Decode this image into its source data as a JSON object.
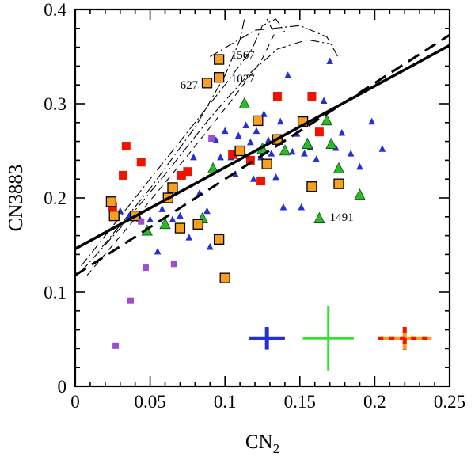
{
  "figure": {
    "xlabel": {
      "text": "CN",
      "sub": "2"
    },
    "ylabel": "CN3883"
  },
  "chart_data": {
    "type": "scatter",
    "title": "",
    "xlabel": "CN2",
    "ylabel": "CN3883",
    "xlim": [
      0,
      0.25
    ],
    "ylim": [
      0,
      0.4
    ],
    "xticks": [
      0,
      0.05,
      0.1,
      0.15,
      0.2,
      0.25
    ],
    "xtick_labels": [
      "0",
      "0.05",
      "0.1",
      "0.15",
      "0.2",
      "0.25"
    ],
    "xminor_step": 0.01,
    "yticks": [
      0,
      0.1,
      0.2,
      0.3,
      0.4
    ],
    "ytick_labels": [
      "0",
      "0.1",
      "0.2",
      "0.3",
      "0.4"
    ],
    "yminor_step": 0.02,
    "grid": false,
    "series": [
      {
        "name": "blue-triangles",
        "marker": "triangle",
        "color": "#2430cf",
        "edge": "none",
        "size": 4,
        "points": [
          [
            0.03,
            0.186
          ],
          [
            0.036,
            0.181
          ],
          [
            0.043,
            0.178
          ],
          [
            0.05,
            0.177
          ],
          [
            0.055,
            0.143
          ],
          [
            0.058,
            0.188
          ],
          [
            0.065,
            0.177
          ],
          [
            0.07,
            0.181
          ],
          [
            0.076,
            0.158
          ],
          [
            0.079,
            0.243
          ],
          [
            0.083,
            0.205
          ],
          [
            0.088,
            0.186
          ],
          [
            0.09,
            0.148
          ],
          [
            0.094,
            0.261
          ],
          [
            0.097,
            0.243
          ],
          [
            0.1,
            0.271
          ],
          [
            0.104,
            0.243
          ],
          [
            0.107,
            0.225
          ],
          [
            0.109,
            0.266
          ],
          [
            0.112,
            0.249
          ],
          [
            0.114,
            0.277
          ],
          [
            0.117,
            0.259
          ],
          [
            0.119,
            0.22
          ],
          [
            0.121,
            0.271
          ],
          [
            0.124,
            0.243
          ],
          [
            0.126,
            0.289
          ],
          [
            0.129,
            0.261
          ],
          [
            0.131,
            0.247
          ],
          [
            0.134,
            0.222
          ],
          [
            0.137,
            0.281
          ],
          [
            0.139,
            0.19
          ],
          [
            0.142,
            0.33
          ],
          [
            0.145,
            0.249
          ],
          [
            0.148,
            0.268
          ],
          [
            0.151,
            0.19
          ],
          [
            0.153,
            0.247
          ],
          [
            0.157,
            0.254
          ],
          [
            0.161,
            0.241
          ],
          [
            0.166,
            0.303
          ],
          [
            0.17,
            0.345
          ],
          [
            0.174,
            0.253
          ],
          [
            0.178,
            0.269
          ],
          [
            0.184,
            0.247
          ],
          [
            0.19,
            0.233
          ],
          [
            0.198,
            0.281
          ],
          [
            0.205,
            0.252
          ]
        ]
      },
      {
        "name": "green-triangles",
        "marker": "triangle",
        "color": "#2db82d",
        "edge": "#005500",
        "size": 6,
        "points": [
          [
            0.048,
            0.165
          ],
          [
            0.06,
            0.172
          ],
          [
            0.085,
            0.178
          ],
          [
            0.092,
            0.231
          ],
          [
            0.113,
            0.3
          ],
          [
            0.125,
            0.252
          ],
          [
            0.14,
            0.25
          ],
          [
            0.155,
            0.257
          ],
          [
            0.163,
            0.178
          ],
          [
            0.168,
            0.282
          ],
          [
            0.171,
            0.257
          ],
          [
            0.176,
            0.231
          ],
          [
            0.19,
            0.203
          ]
        ]
      },
      {
        "name": "red-squares",
        "marker": "square",
        "color": "#ee1500",
        "edge": "none",
        "size": 5.5,
        "points": [
          [
            0.025,
            0.191
          ],
          [
            0.032,
            0.224
          ],
          [
            0.034,
            0.255
          ],
          [
            0.044,
            0.238
          ],
          [
            0.071,
            0.224
          ],
          [
            0.075,
            0.228
          ],
          [
            0.105,
            0.246
          ],
          [
            0.117,
            0.24
          ],
          [
            0.124,
            0.218
          ],
          [
            0.135,
            0.308
          ],
          [
            0.158,
            0.308
          ],
          [
            0.163,
            0.27
          ]
        ]
      },
      {
        "name": "orange-squares",
        "marker": "square",
        "color": "#f5a020",
        "edge": "#000000",
        "size": 6,
        "points": [
          [
            0.024,
            0.196
          ],
          [
            0.026,
            0.181
          ],
          [
            0.04,
            0.181
          ],
          [
            0.062,
            0.2
          ],
          [
            0.065,
            0.211
          ],
          [
            0.07,
            0.168
          ],
          [
            0.082,
            0.172
          ],
          [
            0.088,
            0.322
          ],
          [
            0.096,
            0.347
          ],
          [
            0.096,
            0.328
          ],
          [
            0.096,
            0.156
          ],
          [
            0.1,
            0.115
          ],
          [
            0.11,
            0.25
          ],
          [
            0.122,
            0.282
          ],
          [
            0.128,
            0.236
          ],
          [
            0.135,
            0.262
          ],
          [
            0.152,
            0.281
          ],
          [
            0.158,
            0.212
          ],
          [
            0.176,
            0.215
          ]
        ]
      },
      {
        "name": "purple-squares",
        "marker": "square",
        "color": "#9b4fd0",
        "edge": "none",
        "size": 4,
        "points": [
          [
            0.027,
            0.043
          ],
          [
            0.037,
            0.091
          ],
          [
            0.047,
            0.126
          ],
          [
            0.066,
            0.13
          ],
          [
            0.044,
            0.175
          ],
          [
            0.091,
            0.263
          ]
        ]
      }
    ],
    "lines": [
      {
        "name": "solid-fit-line",
        "style": "solid",
        "color": "#000000",
        "width": 3.5,
        "dash": "",
        "points": [
          [
            0,
            0.146
          ],
          [
            0.25,
            0.362
          ]
        ]
      },
      {
        "name": "dashed-fit-line",
        "style": "dashed",
        "color": "#000000",
        "width": 3,
        "dash": "16 9",
        "points": [
          [
            0,
            0.118
          ],
          [
            0.25,
            0.373
          ]
        ]
      }
    ],
    "tracks": [
      {
        "name": "model-track-1",
        "dash": "12 4 2 4",
        "points": [
          [
            0.004,
            0.122
          ],
          [
            0.03,
            0.168
          ],
          [
            0.06,
            0.225
          ],
          [
            0.09,
            0.285
          ],
          [
            0.115,
            0.33
          ],
          [
            0.135,
            0.358
          ],
          [
            0.155,
            0.368
          ],
          [
            0.172,
            0.363
          ]
        ]
      },
      {
        "name": "model-track-2",
        "dash": "12 4 2 4",
        "points": [
          [
            0.004,
            0.128
          ],
          [
            0.035,
            0.19
          ],
          [
            0.07,
            0.26
          ],
          [
            0.1,
            0.32
          ],
          [
            0.118,
            0.358
          ],
          [
            0.125,
            0.383
          ],
          [
            0.134,
            0.39
          ],
          [
            0.14,
            0.376
          ]
        ]
      },
      {
        "name": "model-track-3",
        "dash": "8 6",
        "points": [
          [
            0.008,
            0.118
          ],
          [
            0.04,
            0.178
          ],
          [
            0.075,
            0.245
          ],
          [
            0.105,
            0.305
          ],
          [
            0.124,
            0.345
          ],
          [
            0.133,
            0.374
          ],
          [
            0.128,
            0.39
          ]
        ]
      },
      {
        "name": "model-track-4",
        "dash": "12 4 2 4",
        "points": [
          [
            0.018,
            0.148
          ],
          [
            0.05,
            0.21
          ],
          [
            0.08,
            0.275
          ],
          [
            0.1,
            0.33
          ],
          [
            0.11,
            0.368
          ],
          [
            0.113,
            0.39
          ]
        ]
      },
      {
        "name": "model-track-5",
        "dash": "12 4 2 4",
        "points": [
          [
            0.09,
            0.35
          ],
          [
            0.12,
            0.378
          ],
          [
            0.15,
            0.383
          ],
          [
            0.168,
            0.371
          ],
          [
            0.176,
            0.348
          ]
        ]
      }
    ],
    "annotations": [
      {
        "text": "1567",
        "x": 0.104,
        "y": 0.352,
        "anchor": "start"
      },
      {
        "text": "1027",
        "x": 0.104,
        "y": 0.327,
        "anchor": "start"
      },
      {
        "text": "627",
        "x": 0.082,
        "y": 0.32,
        "anchor": "end"
      },
      {
        "text": "1491",
        "x": 0.17,
        "y": 0.18,
        "anchor": "start"
      }
    ],
    "error_crosses": [
      {
        "name": "blue-error-cross",
        "color": "#2430cf",
        "x": 0.128,
        "y": 0.051,
        "xerr": 0.012,
        "yerr": 0.012,
        "width": 5
      },
      {
        "name": "green-error-cross",
        "color": "#35e035",
        "x": 0.169,
        "y": 0.051,
        "xerr": 0.017,
        "yerr": 0.034,
        "width": 3
      },
      {
        "name": "orange-error-cross",
        "color": "#f5a020",
        "x": 0.22,
        "y": 0.051,
        "xerr": 0.018,
        "yerr": 0.012,
        "width": 5,
        "dash_color": "#ee1500",
        "dash": "7 7"
      }
    ],
    "layout": {
      "frame_color": "#000000",
      "tick_direction": "in",
      "major_tick_len": 13,
      "minor_tick_len": 6
    }
  }
}
